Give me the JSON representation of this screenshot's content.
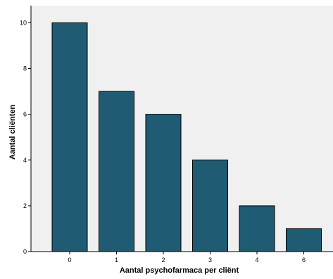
{
  "chart_data": {
    "type": "bar",
    "title": "",
    "xlabel": "Aantal psychofarmaca per cliënt",
    "ylabel": "Aantal cliënten",
    "categories": [
      "0",
      "1",
      "2",
      "3",
      "4",
      "6"
    ],
    "values": [
      10,
      7,
      6,
      4,
      2,
      1
    ],
    "ylim": [
      0,
      10.75
    ],
    "yticks": [
      "0",
      "2",
      "4",
      "6",
      "8",
      "10"
    ],
    "grid": false,
    "legend": "none",
    "colors": {
      "bar_fill": "#1f5b72",
      "bar_stroke": "#000000",
      "plot_background": "#f0f0f0",
      "axis": "#000000"
    }
  }
}
